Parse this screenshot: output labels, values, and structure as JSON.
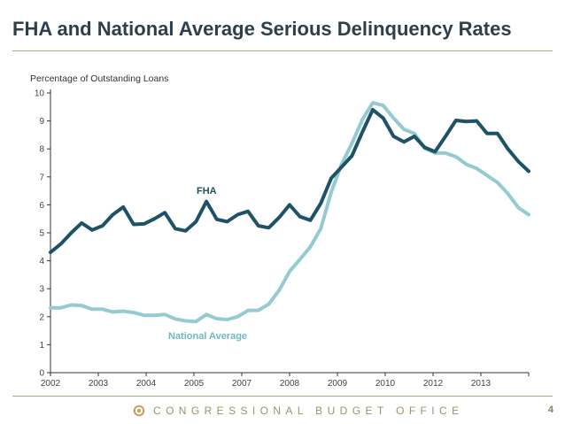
{
  "slide": {
    "title": "FHA and National Average Serious Delinquency Rates",
    "footer_text": "CONGRESSIONAL BUDGET OFFICE",
    "page_number": "4"
  },
  "colors": {
    "title": "#2e3f4a",
    "rule": "#b1a77f",
    "footer": "#a0916a",
    "fha_line": "#1d5267",
    "national_line": "#94cbd1",
    "axis": "#333333"
  },
  "chart_data": {
    "type": "line",
    "title": "",
    "xlabel": "",
    "ylabel": "Percentage of Outstanding Loans",
    "ylim": [
      0,
      10
    ],
    "yticks": [
      0,
      1,
      2,
      3,
      4,
      5,
      6,
      7,
      8,
      9,
      10
    ],
    "xticks": [
      "2002",
      "2003",
      "2004",
      "2005",
      "2007",
      "2008",
      "2009",
      "2010",
      "2012",
      "2013"
    ],
    "grid": false,
    "legend": "inline labels",
    "series_labels": {
      "fha": "FHA",
      "national": "National Average"
    },
    "series": [
      {
        "name": "FHA",
        "color": "#1d5267",
        "values": [
          4.3,
          4.6,
          5.0,
          5.35,
          5.1,
          5.25,
          5.65,
          5.92,
          5.3,
          5.32,
          5.5,
          5.72,
          5.15,
          5.07,
          5.4,
          6.12,
          5.48,
          5.4,
          5.65,
          5.77,
          5.25,
          5.18,
          5.55,
          6.0,
          5.58,
          5.45,
          6.05,
          6.95,
          7.35,
          7.75,
          8.6,
          9.4,
          9.1,
          8.45,
          8.25,
          8.45,
          8.05,
          7.9,
          8.45,
          9.02,
          8.98,
          9.0,
          8.55,
          8.55,
          8.0,
          7.55,
          7.2
        ]
      },
      {
        "name": "National Average",
        "color": "#94cbd1",
        "values": [
          2.32,
          2.32,
          2.42,
          2.4,
          2.27,
          2.27,
          2.17,
          2.2,
          2.15,
          2.05,
          2.05,
          2.08,
          1.92,
          1.85,
          1.83,
          2.08,
          1.93,
          1.9,
          2.0,
          2.22,
          2.23,
          2.45,
          2.95,
          3.62,
          4.05,
          4.5,
          5.15,
          6.45,
          7.45,
          8.2,
          9.05,
          9.65,
          9.55,
          9.1,
          8.7,
          8.55,
          8.02,
          7.85,
          7.85,
          7.72,
          7.45,
          7.3,
          7.05,
          6.8,
          6.4,
          5.9,
          5.65
        ]
      }
    ]
  }
}
